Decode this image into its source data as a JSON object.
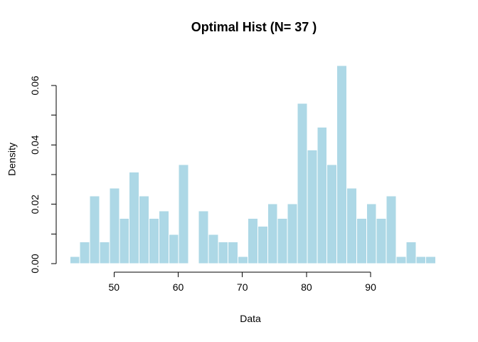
{
  "chart_data": {
    "type": "bar",
    "subtype": "histogram",
    "title": "Optimal Hist (N= 37 )",
    "xlabel": "Data",
    "ylabel": "Density",
    "n_bins": 37,
    "bin_start": 43.13,
    "bin_width": 1.541,
    "densities": [
      0.0024,
      0.0073,
      0.0228,
      0.0073,
      0.0254,
      0.0152,
      0.0308,
      0.0228,
      0.0152,
      0.0178,
      0.0098,
      0.0333,
      0.0,
      0.0178,
      0.0098,
      0.0073,
      0.0073,
      0.0024,
      0.0152,
      0.0126,
      0.0202,
      0.0152,
      0.0202,
      0.054,
      0.0383,
      0.046,
      0.0333,
      0.0667,
      0.0254,
      0.0152,
      0.0202,
      0.0152,
      0.0228,
      0.0024,
      0.0073,
      0.0024,
      0.0024
    ],
    "x_ticks": [
      50,
      60,
      70,
      80,
      90
    ],
    "x_tick_labels": [
      "50",
      "60",
      "70",
      "80",
      "90"
    ],
    "y_ticks": [
      0,
      0.01,
      0.02,
      0.03,
      0.04,
      0.05,
      0.06
    ],
    "y_tick_labels": [
      "0.00",
      "",
      "0.02",
      "",
      "0.04",
      "",
      "0.06"
    ],
    "xlim": [
      43.13,
      100.15
    ],
    "ylim": [
      0,
      0.0667
    ],
    "grid": "off",
    "legend": "none",
    "bar_fill": "#ADD8E6",
    "bar_border": "#FFFFFF",
    "axis_color": "#000000",
    "text_color": "#000000",
    "background": "#FFFFFF"
  }
}
